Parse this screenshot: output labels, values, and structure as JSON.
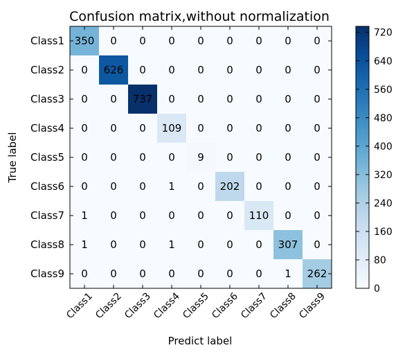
{
  "chart_data": {
    "type": "heatmap",
    "title": "Confusion matrix,without normalization",
    "xlabel": "Predict label",
    "ylabel": "True label",
    "x_categories": [
      "Class1",
      "Class2",
      "Class3",
      "Class4",
      "Class5",
      "Class6",
      "Class7",
      "Class8",
      "Class9"
    ],
    "y_categories": [
      "Class1",
      "Class2",
      "Class3",
      "Class4",
      "Class5",
      "Class6",
      "Class7",
      "Class8",
      "Class9"
    ],
    "matrix": [
      [
        350,
        0,
        0,
        0,
        0,
        0,
        0,
        0,
        0
      ],
      [
        0,
        626,
        0,
        0,
        0,
        0,
        0,
        0,
        0
      ],
      [
        0,
        0,
        737,
        0,
        0,
        0,
        0,
        0,
        0
      ],
      [
        0,
        0,
        0,
        109,
        0,
        0,
        0,
        0,
        0
      ],
      [
        0,
        0,
        0,
        0,
        9,
        0,
        0,
        0,
        0
      ],
      [
        0,
        0,
        0,
        1,
        0,
        202,
        0,
        0,
        0
      ],
      [
        1,
        0,
        0,
        0,
        0,
        0,
        110,
        0,
        0
      ],
      [
        1,
        0,
        0,
        1,
        0,
        0,
        0,
        307,
        0
      ],
      [
        0,
        0,
        0,
        0,
        0,
        0,
        0,
        1,
        262
      ]
    ],
    "colormap": "Blues",
    "colormap_stops": [
      "#f7fbff",
      "#deebf7",
      "#c6dbef",
      "#9ecae1",
      "#6baed6",
      "#4292c6",
      "#2171b5",
      "#08519c",
      "#08306b"
    ],
    "colorbar": {
      "range": [
        0,
        737
      ],
      "ticks": [
        0,
        80,
        160,
        240,
        320,
        400,
        480,
        560,
        640,
        720
      ]
    },
    "grid": false,
    "legend": "colorbar-right"
  }
}
